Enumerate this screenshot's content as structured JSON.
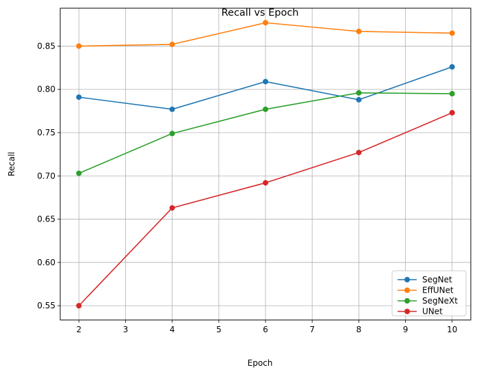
{
  "chart_data": {
    "type": "line",
    "title": "Recall vs Epoch",
    "xlabel": "Epoch",
    "ylabel": "Recall",
    "x": [
      2,
      4,
      6,
      8,
      10
    ],
    "xlim": [
      1.6,
      10.4
    ],
    "ylim": [
      0.5335,
      0.8938
    ],
    "xticks": [
      2,
      3,
      4,
      5,
      6,
      7,
      8,
      9,
      10
    ],
    "yticks": [
      0.55,
      0.6,
      0.65,
      0.7,
      0.75,
      0.8,
      0.85
    ],
    "xtick_labels": [
      "2",
      "3",
      "4",
      "5",
      "6",
      "7",
      "8",
      "9",
      "10"
    ],
    "ytick_labels": [
      "0.55",
      "0.60",
      "0.65",
      "0.70",
      "0.75",
      "0.80",
      "0.85"
    ],
    "grid": true,
    "legend_position": "bottom-right",
    "series": [
      {
        "name": "SegNet",
        "color": "#1f77b4",
        "values": [
          0.791,
          0.777,
          0.809,
          0.788,
          0.826
        ]
      },
      {
        "name": "EffUNet",
        "color": "#ff7f0e",
        "values": [
          0.85,
          0.852,
          0.877,
          0.867,
          0.865
        ]
      },
      {
        "name": "SegNeXt",
        "color": "#2ca02c",
        "values": [
          0.703,
          0.749,
          0.777,
          0.796,
          0.795
        ]
      },
      {
        "name": "UNet",
        "color": "#d62728",
        "values": [
          0.55,
          0.663,
          0.692,
          0.727,
          0.773
        ]
      }
    ]
  }
}
